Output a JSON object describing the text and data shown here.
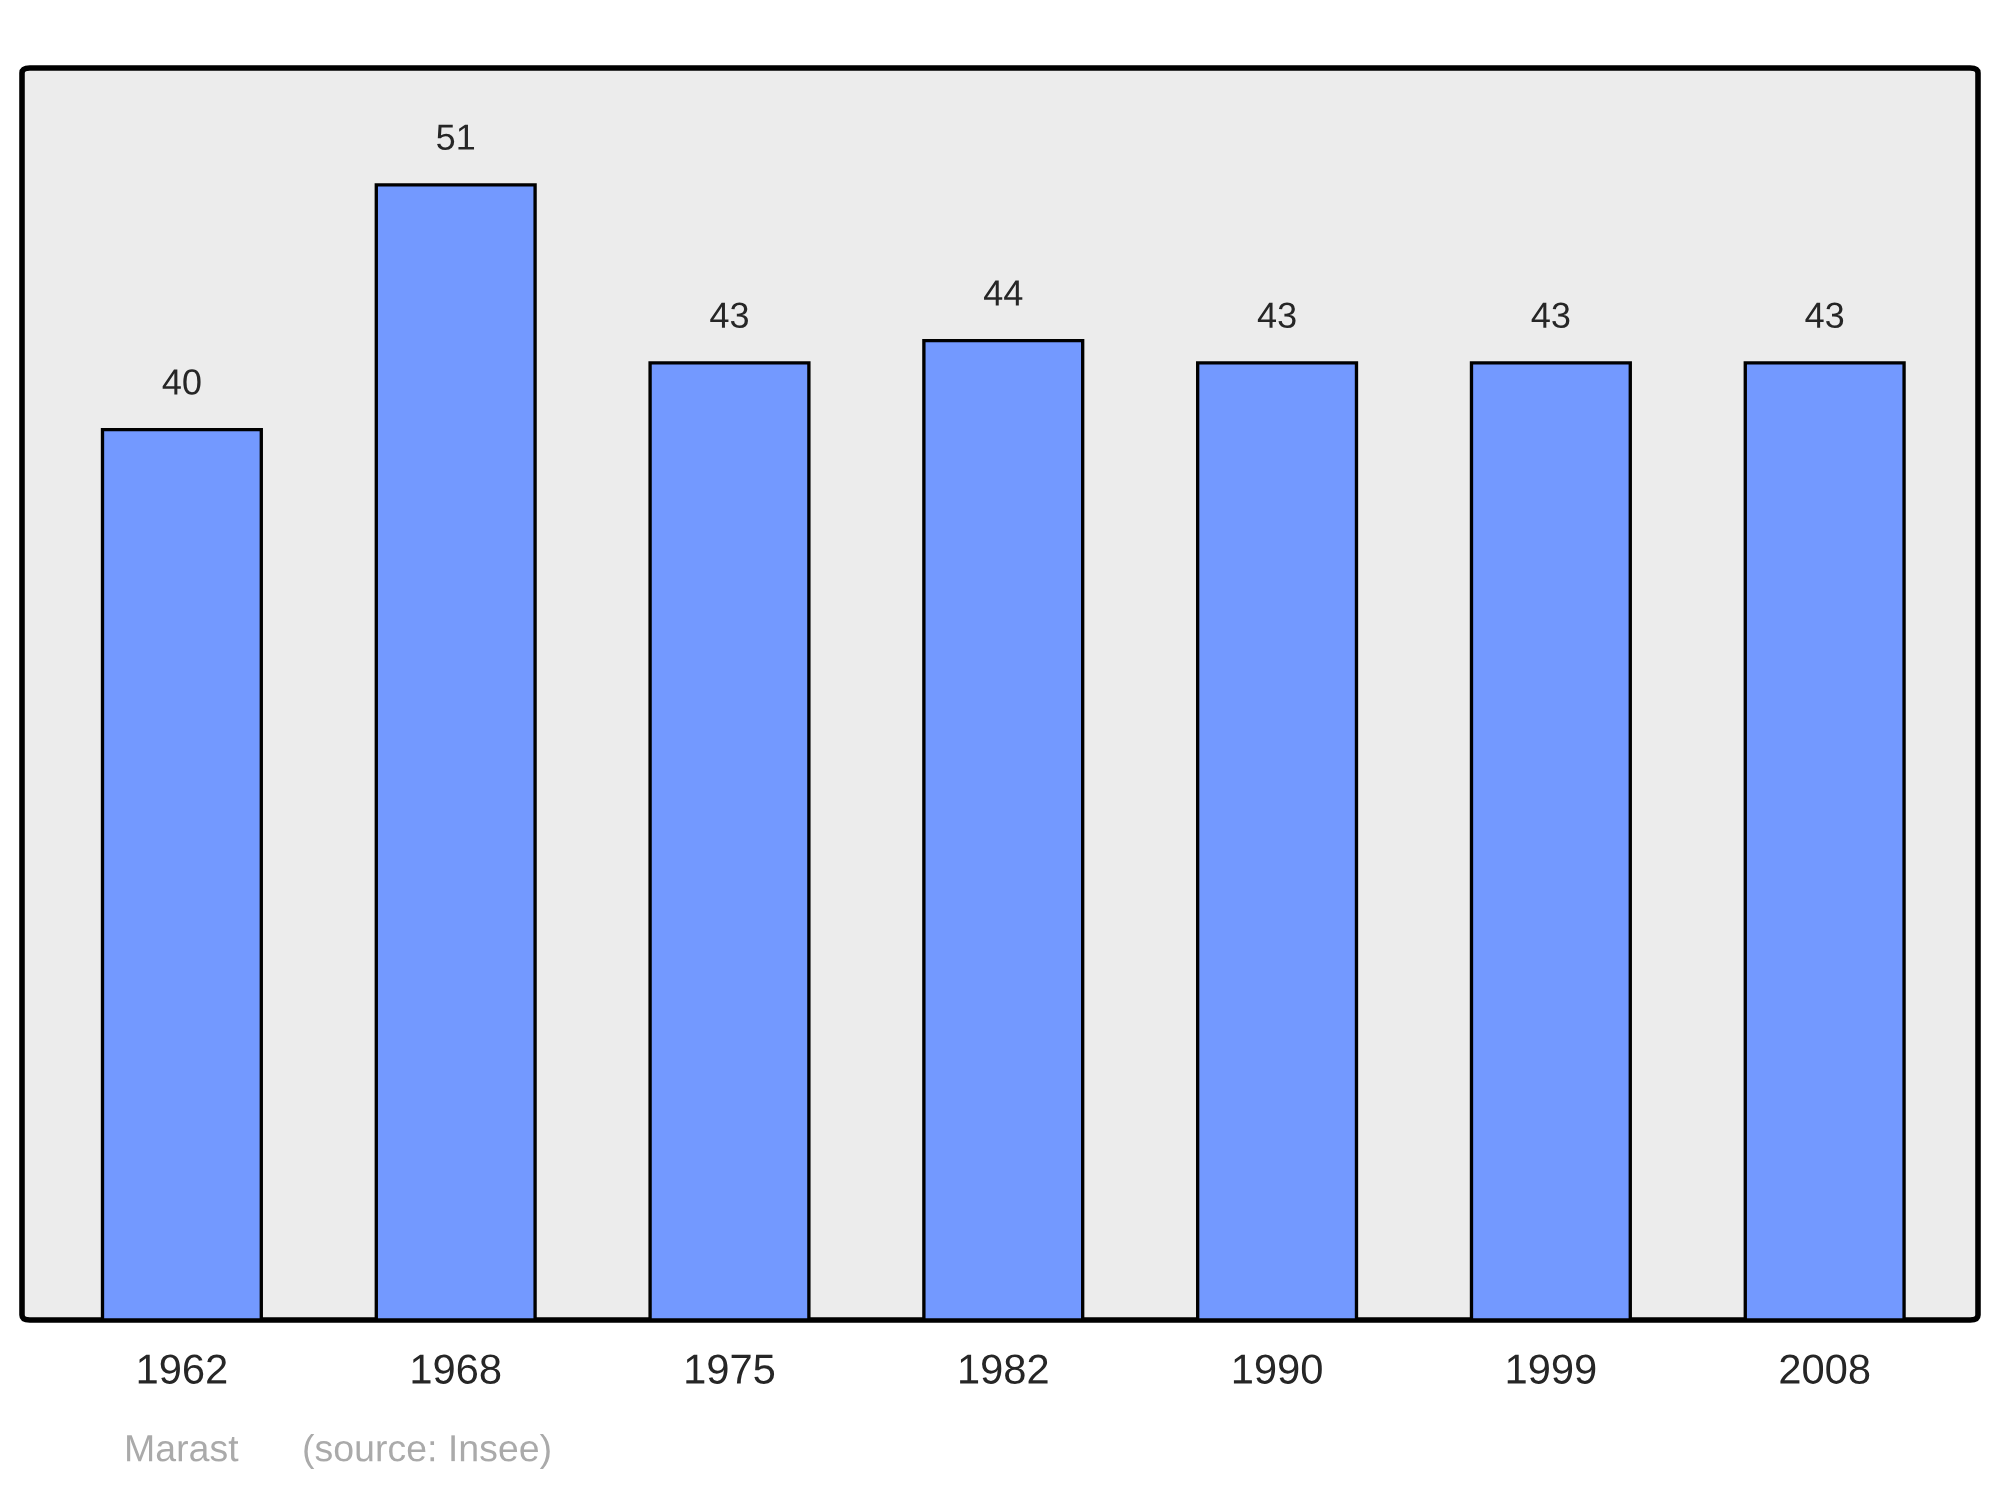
{
  "chart_data": {
    "type": "bar",
    "categories": [
      "1962",
      "1968",
      "1975",
      "1982",
      "1990",
      "1999",
      "2008"
    ],
    "values": [
      40,
      51,
      43,
      44,
      43,
      43,
      43
    ],
    "color": "#7399ff",
    "data_labels": true,
    "grid": false,
    "annotations": [
      "Marast",
      "(source: Insee)"
    ]
  }
}
